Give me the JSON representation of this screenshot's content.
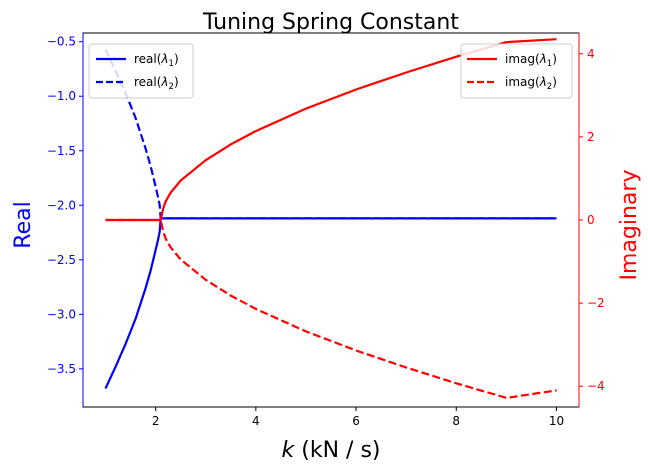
{
  "chart_data": {
    "type": "line",
    "title": "Tuning Spring Constant",
    "xlabel": "k (kN / s)",
    "xlabel_var": "k",
    "xlabel_unit": " (kN / s)",
    "ylabel_left": "Real",
    "ylabel_right": "Imaginary",
    "xlim": [
      0.55,
      10.45
    ],
    "ylim_left": [
      -3.85,
      -0.42
    ],
    "ylim_right": [
      -4.5,
      4.5
    ],
    "xticks": [
      2,
      4,
      6,
      8,
      10
    ],
    "yticks_left": [
      -3.5,
      -3.0,
      -2.5,
      -2.0,
      -1.5,
      -1.0,
      -0.5
    ],
    "yticks_right": [
      -4,
      -2,
      0,
      2,
      4
    ],
    "grid": false,
    "colors": {
      "left_axis": "#0000ff",
      "right_axis": "#ff0000",
      "spine": "#000000"
    },
    "legend_left": {
      "placement": "upper-left",
      "entries": [
        {
          "label_main": "real(",
          "label_sym": "λ",
          "label_sub": "1",
          "label_end": ")",
          "color": "#0000ff",
          "dash": "solid"
        },
        {
          "label_main": "real(",
          "label_sym": "λ",
          "label_sub": "2",
          "label_end": ")",
          "color": "#0000ff",
          "dash": "dashed"
        }
      ]
    },
    "legend_right": {
      "placement": "upper-right",
      "entries": [
        {
          "label_main": "imag(",
          "label_sym": "λ",
          "label_sub": "1",
          "label_end": ")",
          "color": "#ff0000",
          "dash": "solid"
        },
        {
          "label_main": "imag(",
          "label_sym": "λ",
          "label_sub": "2",
          "label_end": ")",
          "color": "#ff0000",
          "dash": "dashed"
        }
      ]
    },
    "series": [
      {
        "name": "real(λ1)",
        "axis": "left",
        "color": "#0000ff",
        "dash": "solid",
        "x": [
          1.0,
          1.2,
          1.4,
          1.6,
          1.8,
          1.9,
          2.0,
          2.05,
          2.08,
          2.1,
          2.15,
          2.5,
          3,
          4,
          5,
          6,
          7,
          8,
          9,
          10
        ],
        "y": [
          -3.68,
          -3.48,
          -3.27,
          -3.04,
          -2.76,
          -2.6,
          -2.41,
          -2.31,
          -2.24,
          -2.12,
          -2.12,
          -2.12,
          -2.12,
          -2.12,
          -2.12,
          -2.12,
          -2.12,
          -2.12,
          -2.12,
          -2.12
        ]
      },
      {
        "name": "real(λ2)",
        "axis": "left",
        "color": "#0000ff",
        "dash": "dashed",
        "x": [
          1.0,
          1.2,
          1.4,
          1.6,
          1.8,
          1.9,
          2.0,
          2.05,
          2.08,
          2.1,
          2.15,
          2.5,
          3,
          4,
          5,
          6,
          7,
          8,
          9,
          10
        ],
        "y": [
          -0.57,
          -0.77,
          -0.97,
          -1.2,
          -1.48,
          -1.64,
          -1.83,
          -1.93,
          -2.0,
          -2.12,
          -2.12,
          -2.12,
          -2.12,
          -2.12,
          -2.12,
          -2.12,
          -2.12,
          -2.12,
          -2.12,
          -2.12
        ]
      },
      {
        "name": "imag(λ1)",
        "axis": "right",
        "color": "#ff0000",
        "dash": "solid",
        "x": [
          1.0,
          1.5,
          2.0,
          2.1,
          2.15,
          2.2,
          2.3,
          2.5,
          3,
          3.5,
          4,
          5,
          6,
          7,
          8,
          9,
          10
        ],
        "y": [
          0,
          0,
          0,
          0,
          0.28,
          0.45,
          0.66,
          0.95,
          1.44,
          1.82,
          2.14,
          2.68,
          3.14,
          3.55,
          3.93,
          4.28,
          4.35
        ]
      },
      {
        "name": "imag(λ2)",
        "axis": "right",
        "color": "#ff0000",
        "dash": "dashed",
        "x": [
          1.0,
          1.5,
          2.0,
          2.1,
          2.15,
          2.2,
          2.3,
          2.5,
          3,
          3.5,
          4,
          5,
          6,
          7,
          8,
          9,
          10
        ],
        "y": [
          0,
          0,
          0,
          0,
          -0.28,
          -0.45,
          -0.66,
          -0.95,
          -1.44,
          -1.82,
          -2.14,
          -2.68,
          -3.14,
          -3.55,
          -3.93,
          -4.28,
          -4.1
        ]
      }
    ]
  }
}
